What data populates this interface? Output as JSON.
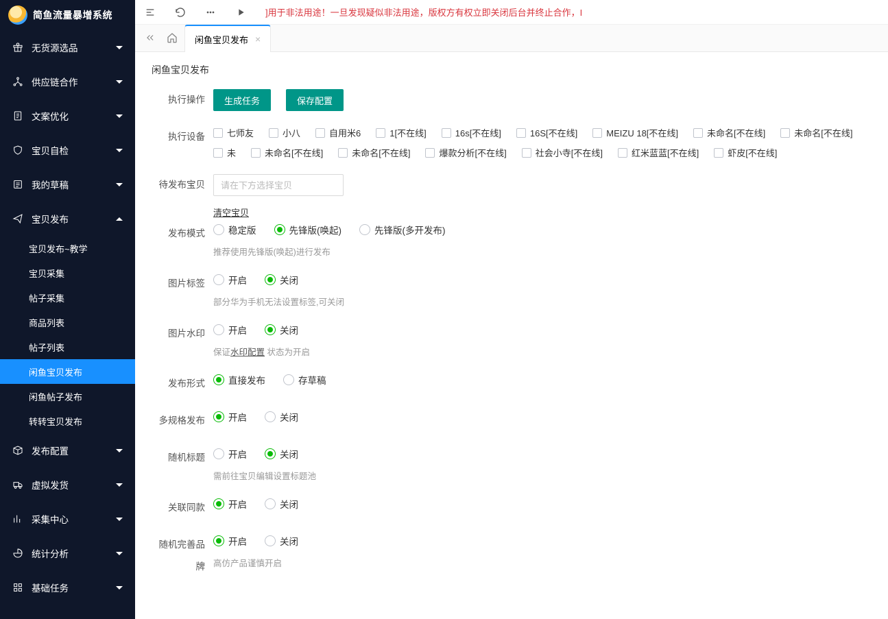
{
  "brand": {
    "title": "简鱼流量暴增系统"
  },
  "sidebar": [
    {
      "icon": "gift",
      "label": "无货源选品",
      "open": false
    },
    {
      "icon": "nodes",
      "label": "供应链合作",
      "open": false
    },
    {
      "icon": "doc",
      "label": "文案优化",
      "open": false
    },
    {
      "icon": "shield",
      "label": "宝贝自检",
      "open": false
    },
    {
      "icon": "draft",
      "label": "我的草稿",
      "open": false
    },
    {
      "icon": "send",
      "label": "宝贝发布",
      "open": true,
      "children": [
        {
          "label": "宝贝发布~教学",
          "active": false
        },
        {
          "label": "宝贝采集",
          "active": false
        },
        {
          "label": "帖子采集",
          "active": false
        },
        {
          "label": "商品列表",
          "active": false
        },
        {
          "label": "帖子列表",
          "active": false
        },
        {
          "label": "闲鱼宝贝发布",
          "active": true
        },
        {
          "label": "闲鱼帖子发布",
          "active": false
        },
        {
          "label": "转转宝贝发布",
          "active": false
        }
      ]
    },
    {
      "icon": "box",
      "label": "发布配置",
      "open": false
    },
    {
      "icon": "truck",
      "label": "虚拟发货",
      "open": false
    },
    {
      "icon": "graph",
      "label": "采集中心",
      "open": false
    },
    {
      "icon": "pie",
      "label": "统计分析",
      "open": false
    },
    {
      "icon": "grid",
      "label": "基础任务",
      "open": false
    }
  ],
  "notice": "]用于非法用途！一旦发现疑似非法用途，版权方有权立即关闭后台并终止合作，I",
  "tabs": {
    "current": "闲鱼宝贝发布"
  },
  "pageTitle": "闲鱼宝贝发布",
  "form": {
    "execOps": {
      "label": "执行操作",
      "gen": "生成任务",
      "save": "保存配置"
    },
    "devices": {
      "label": "执行设备",
      "items": [
        "七师友",
        "小八",
        "自用米6",
        "1[不在线]",
        "16s[不在线]",
        "16S[不在线]",
        "MEIZU 18[不在线]",
        "未命名[不在线]",
        "未命名[不在线]",
        "未",
        "未命名[不在线]",
        "未命名[不在线]",
        "爆款分析[不在线]",
        "社会小寺[不在线]",
        "红米蓝蓝[不在线]",
        "虾皮[不在线]"
      ]
    },
    "pending": {
      "label": "待发布宝贝",
      "placeholder": "请在下方选择宝贝",
      "clear": "清空宝贝"
    },
    "mode": {
      "label": "发布模式",
      "options": [
        "稳定版",
        "先锋版(唤起)",
        "先锋版(多开发布)"
      ],
      "sel": 1,
      "hint": "推荐使用先锋版(唤起)进行发布"
    },
    "imgTag": {
      "label": "图片标签",
      "options": [
        "开启",
        "关闭"
      ],
      "sel": 1,
      "hint": "部分华为手机无法设置标签,可关闭"
    },
    "watermark": {
      "label": "图片水印",
      "options": [
        "开启",
        "关闭"
      ],
      "sel": 1,
      "hintPre": "保证",
      "hintLink": "水印配置",
      "hintPost": " 状态为开启"
    },
    "pubType": {
      "label": "发布形式",
      "options": [
        "直接发布",
        "存草稿"
      ],
      "sel": 0
    },
    "multiSpec": {
      "label": "多规格发布",
      "options": [
        "开启",
        "关闭"
      ],
      "sel": 0
    },
    "randTitle": {
      "label": "随机标题",
      "options": [
        "开启",
        "关闭"
      ],
      "sel": 1,
      "hint": "需前往宝贝编辑设置标题池"
    },
    "linkSame": {
      "label": "关联同款",
      "options": [
        "开启",
        "关闭"
      ],
      "sel": 0
    },
    "randBrand": {
      "label": "随机完善品牌",
      "options": [
        "开启",
        "关闭"
      ],
      "sel": 0,
      "hint": "高仿产品谨慎开启"
    }
  }
}
